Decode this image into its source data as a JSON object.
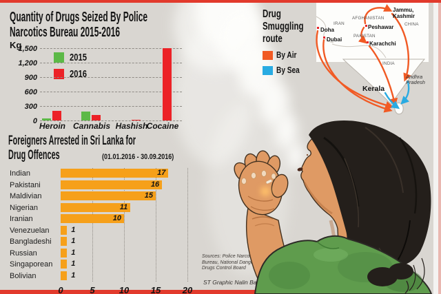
{
  "page": {
    "accent_red": "#e23a2c",
    "background": "#d9d6d1"
  },
  "seizure_chart": {
    "title_line1": "Quantity of Drugs Seized By Police",
    "title_line2": "Narcotics Bureau 2015-2016",
    "unit_label": "Kg"
  },
  "arrests_chart": {
    "title_line1": "Foreigners Arrested in Sri Lanka for",
    "title_line2": "Drug Offences",
    "subtitle": "(01.01.2016 - 30.09.2016)"
  },
  "chart_data": [
    {
      "type": "bar",
      "title": "Quantity of Drugs Seized By Police Narcotics Bureau 2015-2016",
      "ylabel": "Kg",
      "categories": [
        "Heroin",
        "Cannabis",
        "Hashish",
        "Cocaine"
      ],
      "series": [
        {
          "name": "2015",
          "color": "#5cb947",
          "values": [
            40,
            190,
            0,
            0
          ]
        },
        {
          "name": "2016",
          "color": "#ec2227",
          "values": [
            200,
            110,
            10,
            1500
          ]
        }
      ],
      "ylim": [
        0,
        1500
      ],
      "yticks": [
        "0",
        "300",
        "600",
        "900",
        "1,200",
        "1,500"
      ],
      "grid": "dashed-horizontal",
      "legend_position": "upper-left-inside"
    },
    {
      "type": "bar",
      "orientation": "horizontal",
      "title": "Foreigners Arrested in Sri Lanka for Drug Offences",
      "subtitle": "(01.01.2016 - 30.09.2016)",
      "categories": [
        "Indian",
        "Pakistani",
        "Maldivian",
        "Nigerian",
        "Iranian",
        "Venezuelan",
        "Bangladeshi",
        "Russian",
        "Singaporean",
        "Bolivian"
      ],
      "values": [
        17,
        16,
        15,
        11,
        10,
        1,
        1,
        1,
        1,
        1
      ],
      "bar_color": "#f6a01a",
      "xlim": [
        0,
        20
      ],
      "xticks": [
        0,
        5,
        10,
        15,
        20
      ],
      "grid": "dotted-vertical"
    }
  ],
  "smuggling": {
    "title_line1": "Drug",
    "title_line2": "Smuggling",
    "title_line3": "route",
    "items": [
      {
        "label": "By Air",
        "color": "#f15a24"
      },
      {
        "label": "By Sea",
        "color": "#29abe2"
      }
    ]
  },
  "map": {
    "countries": [
      {
        "name": "IRAN"
      },
      {
        "name": "AFGHANISTAN"
      },
      {
        "name": "PAKISTAN"
      },
      {
        "name": "CHINA"
      },
      {
        "name": "INDIA"
      }
    ],
    "cities": [
      {
        "name": "Doha"
      },
      {
        "name": "Dubai"
      },
      {
        "name": "Peshawar"
      },
      {
        "name": "Karachchi"
      }
    ],
    "regions": [
      {
        "name": "Jammu,"
      },
      {
        "name": "Kashmir"
      },
      {
        "name": "Kerala"
      },
      {
        "name": "Andhra"
      },
      {
        "name": "Pradesh"
      }
    ],
    "marker_color": "#e8252a",
    "air_color": "#f15a24",
    "sea_color": "#29abe2"
  },
  "credits": {
    "sources_line1": "Sources: Police Narcotic",
    "sources_line2": "Bureau, National Dangerous",
    "sources_line3": "Drugs Control Board",
    "byline": "ST Graphic Nalin Balasuriya"
  }
}
